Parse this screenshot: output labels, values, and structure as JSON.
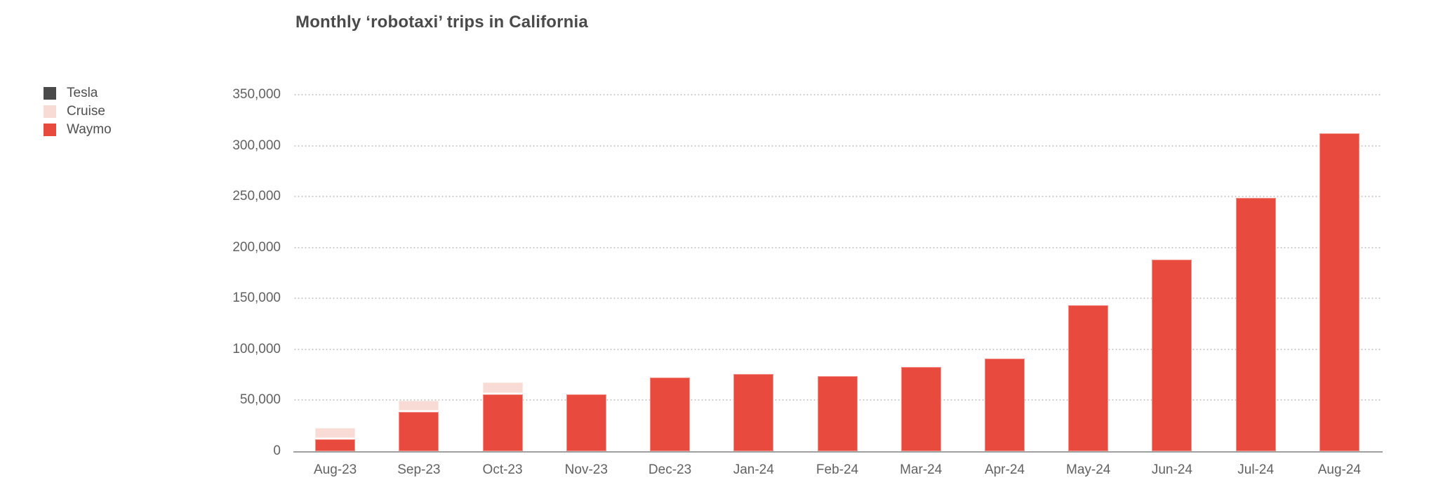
{
  "title": "Monthly ‘robotaxi’ trips in California",
  "legend": {
    "position": "top-left",
    "items": [
      {
        "label": "Tesla",
        "color": "#4a4a4a"
      },
      {
        "label": "Cruise",
        "color": "#f9dbd6"
      },
      {
        "label": "Waymo",
        "color": "#e84a3e"
      }
    ]
  },
  "colors": {
    "background": "#ffffff",
    "title_text": "#4a4a4a",
    "tick_text": "#616161",
    "legend_text": "#4f4f4f",
    "gridline": "#c9c9c9",
    "axis_line": "#a0a0a0",
    "waymo_red": "#e84a3e",
    "cruise_pink": "#f9dbd6",
    "tesla_dark": "#4a4a4a"
  },
  "chart_data": {
    "type": "bar",
    "stacked": true,
    "title": "Monthly ‘robotaxi’ trips in California",
    "categories": [
      "Aug-23",
      "Sep-23",
      "Oct-23",
      "Nov-23",
      "Dec-23",
      "Jan-24",
      "Feb-24",
      "Mar-24",
      "Apr-24",
      "May-24",
      "Jun-24",
      "Jul-24",
      "Aug-24"
    ],
    "series": [
      {
        "name": "Waymo",
        "color": "#e84a3e",
        "values": [
          12000,
          38500,
          55500,
          56000,
          72000,
          76000,
          73500,
          83000,
          91000,
          143000,
          188000,
          249000,
          312000
        ]
      },
      {
        "name": "Cruise",
        "color": "#f9dbd6",
        "values": [
          9200,
          9400,
          10300,
          0,
          0,
          0,
          0,
          0,
          0,
          0,
          0,
          0,
          0
        ]
      },
      {
        "name": "Tesla",
        "color": "#4a4a4a",
        "values": [
          0,
          0,
          0,
          0,
          0,
          0,
          0,
          0,
          0,
          0,
          0,
          0,
          0
        ]
      }
    ],
    "stack_order_bottom_to_top": [
      "Waymo",
      "Cruise",
      "Tesla"
    ],
    "xlabel": "",
    "ylabel": "",
    "ylim": [
      0,
      350000
    ],
    "ytick_interval": 50000,
    "ytick_labels": [
      "0",
      "50,000",
      "100,000",
      "150,000",
      "200,000",
      "250,000",
      "300,000",
      "350,000"
    ],
    "grid": "horizontal-dotted",
    "legend_position": "top-left",
    "legend_order": [
      "Tesla",
      "Cruise",
      "Waymo"
    ]
  }
}
